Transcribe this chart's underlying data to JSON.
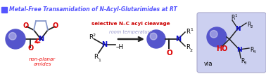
{
  "title": "Metal-Free Transamidation of N-Acyl-Glutarimides at RT",
  "title_color": "#5555ff",
  "title_square_color": "#5555ff",
  "bg_color": "#ffffff",
  "figsize": [
    3.78,
    1.06
  ],
  "dpi": 100,
  "label_non_planar": "non-planar\namides",
  "label_non_planar_color": "#ee1111",
  "label_room_temp": "room temperature",
  "label_room_temp_color": "#9999cc",
  "label_selective": "selective N–C acyl cleavage",
  "label_selective_color": "#cc0000",
  "label_via": "via",
  "sphere_color": "#5555cc",
  "ring_color": "#8899cc",
  "carbonyl_O_color": "#dd0000",
  "N_color": "#1111cc",
  "bond_color": "#222222",
  "HO_color": "#dd0000",
  "box_bg": "#ccd0f0",
  "box_edge": "#aaaacc",
  "arrow_color": "#222222"
}
